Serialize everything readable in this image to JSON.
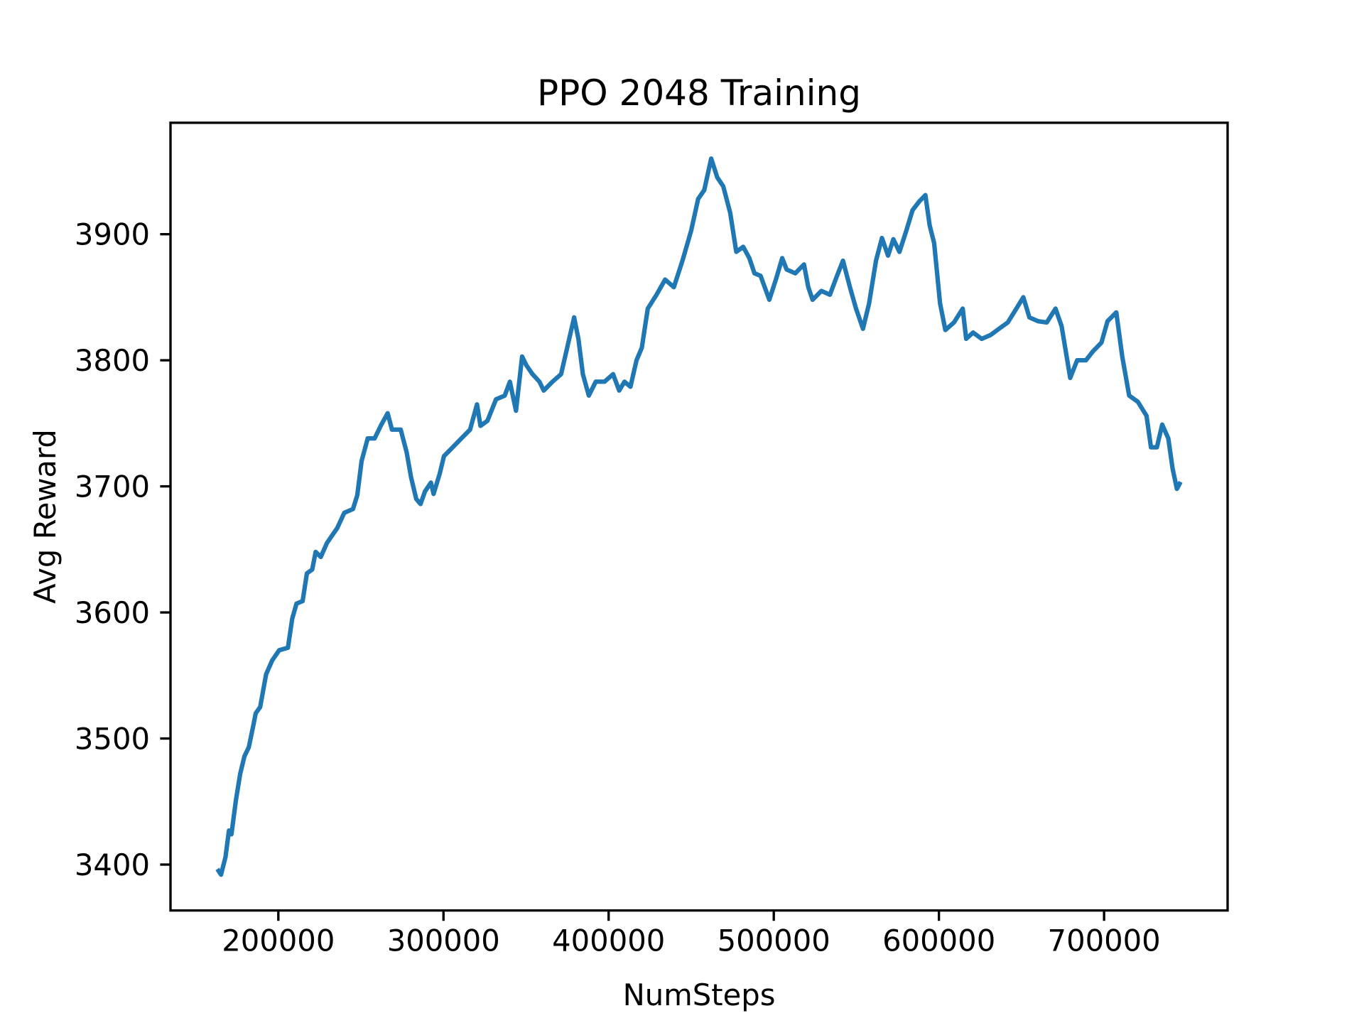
{
  "chart_data": {
    "type": "line",
    "title": "PPO 2048 Training",
    "xlabel": "NumSteps",
    "ylabel": "Avg Reward",
    "xlim": [
      134700,
      774800
    ],
    "ylim": [
      3363.6,
      3988.4
    ],
    "xticks": [
      200000,
      300000,
      400000,
      500000,
      600000,
      700000
    ],
    "yticks": [
      3400,
      3500,
      3600,
      3700,
      3800,
      3900
    ],
    "series": [
      {
        "color": "#1f77b4",
        "x": [
          163800,
          165300,
          168000,
          170100,
          171600,
          174300,
          176900,
          179500,
          182100,
          184800,
          186300,
          189000,
          192600,
          196300,
          200500,
          205800,
          208400,
          211000,
          214700,
          217300,
          220500,
          222600,
          225700,
          229400,
          232000,
          235700,
          239900,
          245200,
          247800,
          250400,
          254100,
          258300,
          262000,
          266200,
          268800,
          274100,
          277700,
          280400,
          283500,
          286100,
          288800,
          292400,
          294000,
          297700,
          300300,
          305600,
          310800,
          316100,
          320300,
          322400,
          326600,
          331800,
          337100,
          340200,
          343900,
          347600,
          350200,
          353900,
          358100,
          360700,
          366000,
          371200,
          374900,
          379100,
          381700,
          384400,
          388000,
          392200,
          397500,
          402700,
          406400,
          409600,
          413200,
          416900,
          420100,
          423700,
          429000,
          434200,
          439500,
          444700,
          450000,
          454200,
          457900,
          462100,
          465800,
          469400,
          473600,
          477300,
          481500,
          485200,
          488300,
          492000,
          497300,
          501500,
          505100,
          507800,
          513000,
          518300,
          520900,
          523500,
          528800,
          534000,
          537700,
          541900,
          546100,
          549800,
          554000,
          557700,
          561900,
          565500,
          569200,
          572400,
          576100,
          580300,
          584000,
          588100,
          591800,
          594400,
          597100,
          600700,
          603900,
          609100,
          614400,
          616500,
          620700,
          625900,
          631200,
          636400,
          641700,
          646900,
          651100,
          654800,
          660000,
          665300,
          670600,
          674300,
          679500,
          683700,
          689000,
          693200,
          698400,
          702100,
          707400,
          711000,
          715200,
          720500,
          725700,
          728400,
          732000,
          735200,
          738900,
          741500,
          744100,
          745700
        ],
        "values": [
          3395,
          3392,
          3406,
          3427,
          3424,
          3451,
          3472,
          3486,
          3493,
          3510,
          3520,
          3525,
          3551,
          3562,
          3570,
          3572,
          3595,
          3607,
          3609,
          3631,
          3634,
          3648,
          3644,
          3655,
          3660,
          3667,
          3679,
          3682,
          3693,
          3720,
          3738,
          3738,
          3748,
          3758,
          3745,
          3745,
          3727,
          3707,
          3690,
          3686,
          3696,
          3703,
          3694,
          3710,
          3724,
          3731,
          3738,
          3745,
          3765,
          3748,
          3752,
          3769,
          3772,
          3783,
          3760,
          3803,
          3796,
          3789,
          3783,
          3776,
          3783,
          3789,
          3810,
          3834,
          3817,
          3789,
          3772,
          3783,
          3783,
          3789,
          3776,
          3783,
          3779,
          3800,
          3810,
          3841,
          3852,
          3864,
          3858,
          3879,
          3903,
          3928,
          3935,
          3960,
          3945,
          3938,
          3917,
          3886,
          3890,
          3881,
          3869,
          3867,
          3848,
          3865,
          3881,
          3872,
          3869,
          3876,
          3858,
          3848,
          3855,
          3852,
          3865,
          3879,
          3858,
          3841,
          3825,
          3845,
          3879,
          3897,
          3883,
          3896,
          3886,
          3903,
          3919,
          3926,
          3931,
          3907,
          3893,
          3845,
          3824,
          3830,
          3841,
          3817,
          3822,
          3817,
          3820,
          3825,
          3830,
          3841,
          3850,
          3834,
          3831,
          3830,
          3841,
          3827,
          3786,
          3800,
          3800,
          3807,
          3814,
          3831,
          3838,
          3803,
          3772,
          3767,
          3756,
          3731,
          3731,
          3749,
          3738,
          3714,
          3698,
          3702
        ]
      }
    ]
  }
}
